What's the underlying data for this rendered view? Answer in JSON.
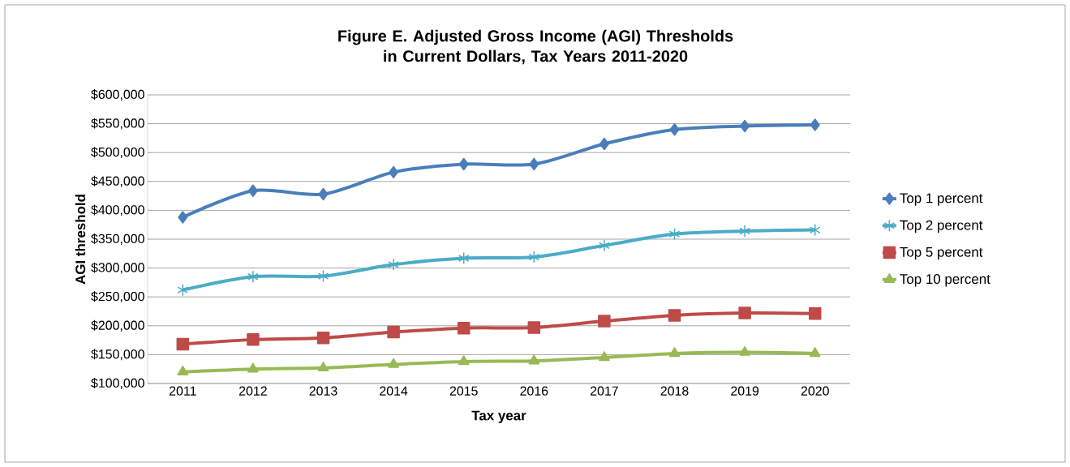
{
  "chart_data": {
    "type": "line",
    "title": "Figure E.  Adjusted Gross Income (AGI) Thresholds in Current Dollars, Tax Years 2011-2020",
    "xlabel": "Tax year",
    "ylabel": "AGI threshold",
    "categories": [
      "2011",
      "2012",
      "2013",
      "2014",
      "2015",
      "2016",
      "2017",
      "2018",
      "2019",
      "2020"
    ],
    "series": [
      {
        "name": "Top 1 percent",
        "color": "#4a7ebb",
        "marker": "diamond",
        "values": [
          388000,
          434000,
          428000,
          466000,
          480000,
          480000,
          515000,
          540000,
          546000,
          548000
        ]
      },
      {
        "name": "Top 2 percent",
        "color": "#4bacc6",
        "marker": "cross",
        "values": [
          262000,
          285000,
          286000,
          306000,
          317000,
          319000,
          339000,
          359000,
          364000,
          366000
        ]
      },
      {
        "name": "Top 5 percent",
        "color": "#be4b48",
        "marker": "square",
        "values": [
          168000,
          176000,
          179000,
          189000,
          196000,
          197000,
          208000,
          218000,
          222000,
          221000
        ]
      },
      {
        "name": "Top 10 percent",
        "color": "#98b954",
        "marker": "triangle",
        "values": [
          120000,
          125000,
          127000,
          133000,
          138000,
          139000,
          145000,
          152000,
          154000,
          152000
        ]
      }
    ],
    "ylim": [
      100000,
      600000
    ],
    "yticks": [
      {
        "value": 100000,
        "label": "$100,000"
      },
      {
        "value": 150000,
        "label": "$150,000"
      },
      {
        "value": 200000,
        "label": "$200,000"
      },
      {
        "value": 250000,
        "label": "$250,000"
      },
      {
        "value": 300000,
        "label": "$300,000"
      },
      {
        "value": 350000,
        "label": "$350,000"
      },
      {
        "value": 400000,
        "label": "$400,000"
      },
      {
        "value": 450000,
        "label": "$450,000"
      },
      {
        "value": 500000,
        "label": "$500,000"
      },
      {
        "value": 550000,
        "label": "$550,000"
      },
      {
        "value": 600000,
        "label": "$600,000"
      }
    ],
    "grid": "y",
    "legend": "right",
    "line_style": "solid"
  }
}
